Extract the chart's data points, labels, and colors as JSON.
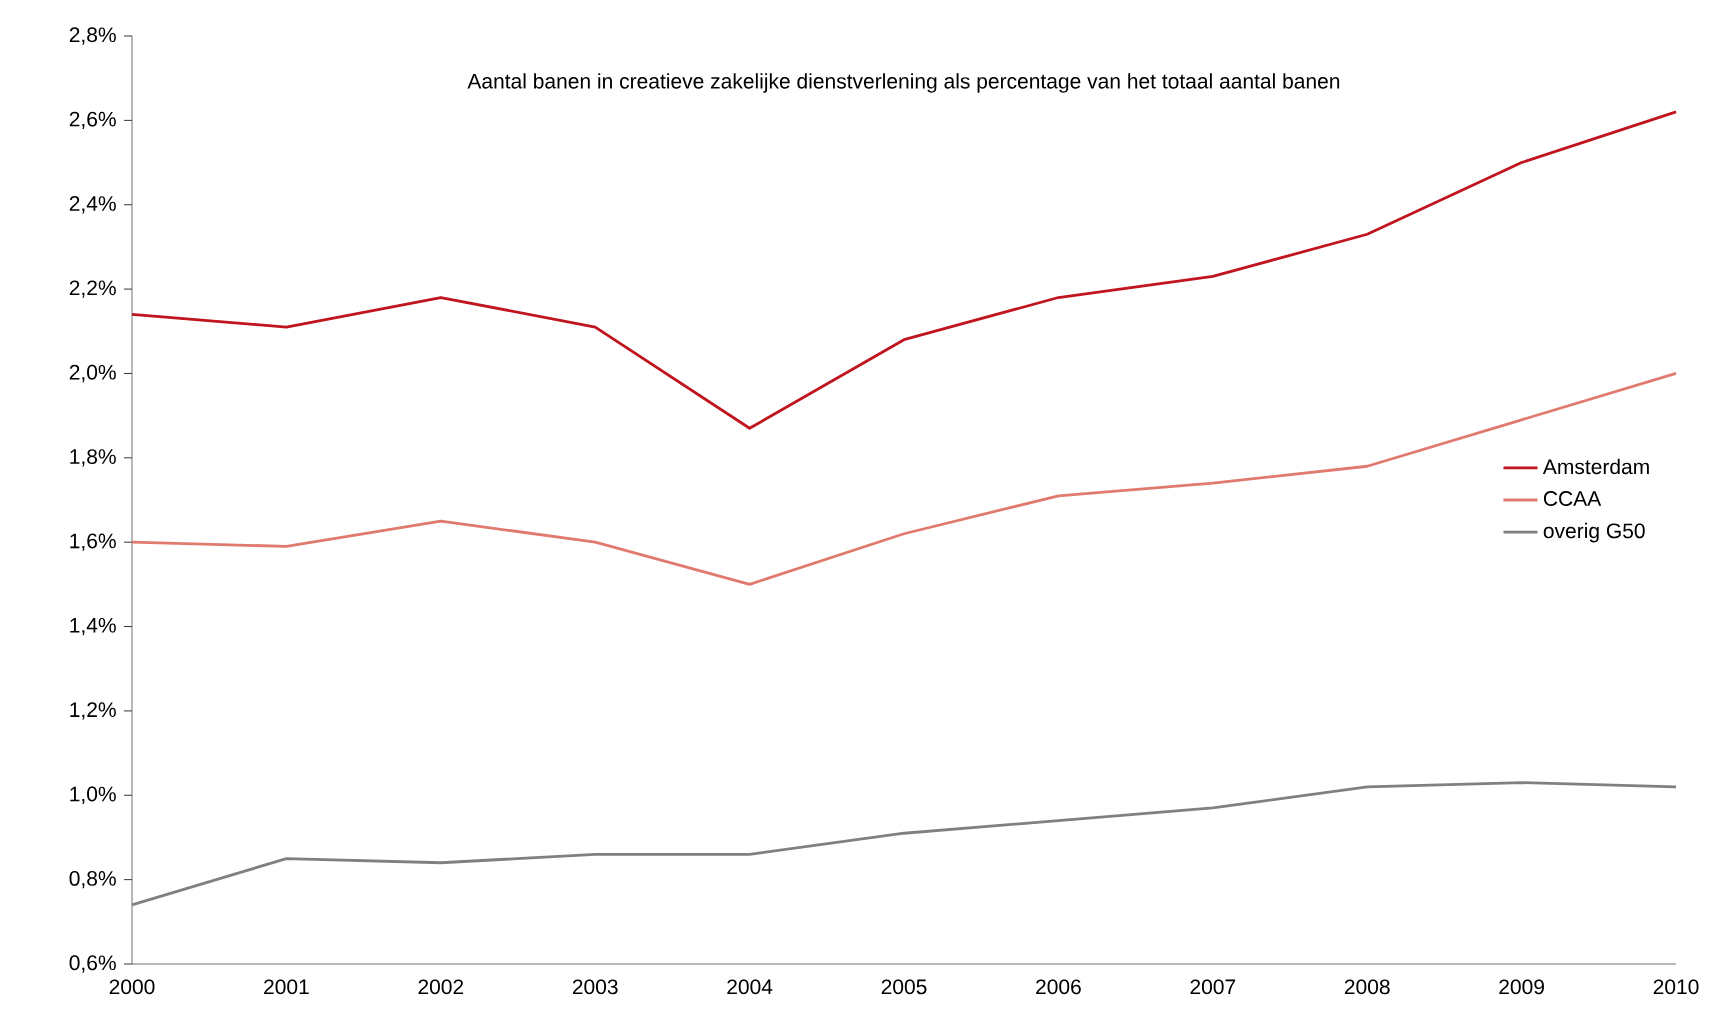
{
  "chart_data": {
    "type": "line",
    "title": "Aantal banen in creatieve zakelijke dienstverlening als percentage van het totaal aantal banen",
    "x": [
      2000,
      2001,
      2002,
      2003,
      2004,
      2005,
      2006,
      2007,
      2008,
      2009,
      2010
    ],
    "series": [
      {
        "name": "Amsterdam",
        "color": "#c0141e",
        "values": [
          2.14,
          2.11,
          2.18,
          2.11,
          1.87,
          2.08,
          2.18,
          2.23,
          2.33,
          2.5,
          2.62
        ]
      },
      {
        "name": "CCAA",
        "color": "#e07a6e",
        "values": [
          1.6,
          1.59,
          1.65,
          1.6,
          1.5,
          1.62,
          1.71,
          1.74,
          1.78,
          1.89,
          2.0
        ]
      },
      {
        "name": "overig G50",
        "color": "#808080",
        "values": [
          0.74,
          0.85,
          0.84,
          0.86,
          0.86,
          0.91,
          0.94,
          0.97,
          1.02,
          1.03,
          1.02
        ]
      }
    ],
    "xlim": [
      2000,
      2010
    ],
    "xticks": [
      2000,
      2001,
      2002,
      2003,
      2004,
      2005,
      2006,
      2007,
      2008,
      2009,
      2010
    ],
    "ylim": [
      0.6,
      2.8
    ],
    "yticks": [
      {
        "value": 0.6,
        "label": "0,6%"
      },
      {
        "value": 0.8,
        "label": "0,8%"
      },
      {
        "value": 1.0,
        "label": "1,0%"
      },
      {
        "value": 1.2,
        "label": "1,2%"
      },
      {
        "value": 1.4,
        "label": "1,4%"
      },
      {
        "value": 1.6,
        "label": "1,6%"
      },
      {
        "value": 1.8,
        "label": "1,8%"
      },
      {
        "value": 2.0,
        "label": "2,0%"
      },
      {
        "value": 2.2,
        "label": "2,2%"
      },
      {
        "value": 2.4,
        "label": "2,4%"
      },
      {
        "value": 2.6,
        "label": "2,6%"
      },
      {
        "value": 2.8,
        "label": "2,8%"
      }
    ],
    "grid": false,
    "legend": "right",
    "marker": "none",
    "line_style": "solid"
  }
}
